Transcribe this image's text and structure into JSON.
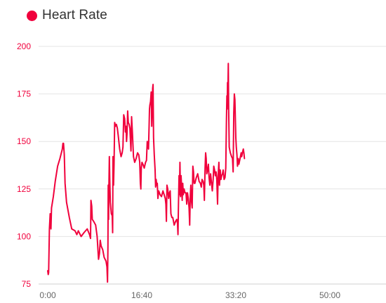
{
  "chart_data": {
    "type": "line",
    "title": "",
    "xlabel": "",
    "ylabel": "",
    "legend_position": "top-left",
    "grid": true,
    "xlim_seconds": [
      0,
      3600
    ],
    "ylim": [
      75,
      200
    ],
    "yticks": [
      75,
      100,
      125,
      150,
      175,
      200
    ],
    "xticks": [
      {
        "seconds": 0,
        "label": "0:00"
      },
      {
        "seconds": 1000,
        "label": "16:40"
      },
      {
        "seconds": 2000,
        "label": "33:20"
      },
      {
        "seconds": 3000,
        "label": "50:00"
      }
    ],
    "series": [
      {
        "name": "Heart Rate",
        "color": "#f0003c",
        "x_unit": "seconds",
        "points": [
          [
            0,
            82
          ],
          [
            5,
            80
          ],
          [
            10,
            81
          ],
          [
            18,
            104
          ],
          [
            26,
            112
          ],
          [
            34,
            104
          ],
          [
            40,
            115
          ],
          [
            60,
            121
          ],
          [
            80,
            129
          ],
          [
            105,
            137
          ],
          [
            130,
            141
          ],
          [
            155,
            146
          ],
          [
            162,
            149
          ],
          [
            168,
            149
          ],
          [
            176,
            143
          ],
          [
            184,
            128
          ],
          [
            200,
            118
          ],
          [
            230,
            110
          ],
          [
            255,
            104
          ],
          [
            290,
            103
          ],
          [
            310,
            101
          ],
          [
            325,
            103
          ],
          [
            355,
            100
          ],
          [
            385,
            102
          ],
          [
            420,
            104
          ],
          [
            445,
            101
          ],
          [
            455,
            99
          ],
          [
            460,
            119
          ],
          [
            468,
            116
          ],
          [
            474,
            109
          ],
          [
            488,
            108
          ],
          [
            510,
            106
          ],
          [
            525,
            100
          ],
          [
            540,
            88
          ],
          [
            550,
            91
          ],
          [
            558,
            98
          ],
          [
            568,
            95
          ],
          [
            585,
            93
          ],
          [
            600,
            89
          ],
          [
            620,
            87
          ],
          [
            630,
            84
          ],
          [
            636,
            76
          ],
          [
            640,
            95
          ],
          [
            643,
            127
          ],
          [
            647,
            109
          ],
          [
            651,
            127
          ],
          [
            655,
            142
          ],
          [
            660,
            130
          ],
          [
            666,
            118
          ],
          [
            676,
            112
          ],
          [
            686,
            111
          ],
          [
            690,
            102
          ],
          [
            694,
            142
          ],
          [
            700,
            127
          ],
          [
            705,
            138
          ],
          [
            712,
            160
          ],
          [
            720,
            158
          ],
          [
            730,
            159
          ],
          [
            740,
            157
          ],
          [
            750,
            153
          ],
          [
            765,
            146
          ],
          [
            780,
            142
          ],
          [
            792,
            144
          ],
          [
            800,
            147
          ],
          [
            808,
            164
          ],
          [
            818,
            162
          ],
          [
            826,
            155
          ],
          [
            832,
            158
          ],
          [
            838,
            150
          ],
          [
            843,
            154
          ],
          [
            850,
            166
          ],
          [
            857,
            160
          ],
          [
            866,
            159
          ],
          [
            874,
            157
          ],
          [
            879,
            151
          ],
          [
            885,
            145
          ],
          [
            892,
            163
          ],
          [
            900,
            155
          ],
          [
            912,
            142
          ],
          [
            925,
            139
          ],
          [
            940,
            141
          ],
          [
            955,
            144
          ],
          [
            968,
            143
          ],
          [
            978,
            139
          ],
          [
            985,
            128
          ],
          [
            990,
            125
          ],
          [
            995,
            136
          ],
          [
            1002,
            139
          ],
          [
            1012,
            138
          ],
          [
            1026,
            136
          ],
          [
            1040,
            139
          ],
          [
            1050,
            140
          ],
          [
            1058,
            150
          ],
          [
            1066,
            148
          ],
          [
            1072,
            146
          ],
          [
            1078,
            159
          ],
          [
            1082,
            167
          ],
          [
            1086,
            169
          ],
          [
            1093,
            171
          ],
          [
            1100,
            176
          ],
          [
            1106,
            158
          ],
          [
            1112,
            170
          ],
          [
            1116,
            178
          ],
          [
            1120,
            180
          ],
          [
            1125,
            152
          ],
          [
            1133,
            143
          ],
          [
            1142,
            135
          ],
          [
            1147,
            126
          ],
          [
            1153,
            130
          ],
          [
            1159,
            127
          ],
          [
            1165,
            128
          ],
          [
            1172,
            120
          ],
          [
            1180,
            124
          ],
          [
            1195,
            122
          ],
          [
            1210,
            121
          ],
          [
            1225,
            124
          ],
          [
            1238,
            122
          ],
          [
            1250,
            120
          ],
          [
            1257,
            117
          ],
          [
            1262,
            108
          ],
          [
            1268,
            127
          ],
          [
            1276,
            125
          ],
          [
            1286,
            120
          ],
          [
            1295,
            123
          ],
          [
            1302,
            124
          ],
          [
            1310,
            112
          ],
          [
            1320,
            110
          ],
          [
            1330,
            110
          ],
          [
            1345,
            106
          ],
          [
            1360,
            108
          ],
          [
            1372,
            109
          ],
          [
            1380,
            107
          ],
          [
            1385,
            101
          ],
          [
            1390,
            117
          ],
          [
            1396,
            132
          ],
          [
            1401,
            122
          ],
          [
            1406,
            139
          ],
          [
            1412,
            121
          ],
          [
            1418,
            132
          ],
          [
            1424,
            126
          ],
          [
            1430,
            119
          ],
          [
            1436,
            128
          ],
          [
            1442,
            122
          ],
          [
            1450,
            125
          ],
          [
            1460,
            123
          ],
          [
            1470,
            123
          ],
          [
            1478,
            117
          ],
          [
            1486,
            123
          ],
          [
            1495,
            120
          ],
          [
            1503,
            115
          ],
          [
            1510,
            106
          ],
          [
            1515,
            120
          ],
          [
            1522,
            127
          ],
          [
            1530,
            118
          ],
          [
            1536,
            115
          ],
          [
            1543,
            137
          ],
          [
            1550,
            134
          ],
          [
            1557,
            128
          ],
          [
            1565,
            128
          ],
          [
            1580,
            131
          ],
          [
            1595,
            133
          ],
          [
            1610,
            129
          ],
          [
            1623,
            128
          ],
          [
            1633,
            126
          ],
          [
            1641,
            130
          ],
          [
            1652,
            129
          ],
          [
            1660,
            127
          ],
          [
            1666,
            119
          ],
          [
            1673,
            136
          ],
          [
            1679,
            144
          ],
          [
            1685,
            141
          ],
          [
            1691,
            133
          ],
          [
            1700,
            135
          ],
          [
            1708,
            138
          ],
          [
            1716,
            131
          ],
          [
            1724,
            127
          ],
          [
            1732,
            133
          ],
          [
            1742,
            128
          ],
          [
            1750,
            124
          ],
          [
            1759,
            130
          ],
          [
            1766,
            137
          ],
          [
            1774,
            135
          ],
          [
            1782,
            132
          ],
          [
            1790,
            134
          ],
          [
            1798,
            130
          ],
          [
            1806,
            117
          ],
          [
            1812,
            132
          ],
          [
            1820,
            139
          ],
          [
            1826,
            127
          ],
          [
            1834,
            135
          ],
          [
            1842,
            130
          ],
          [
            1850,
            132
          ],
          [
            1858,
            133
          ],
          [
            1866,
            135
          ],
          [
            1875,
            130
          ],
          [
            1885,
            131
          ],
          [
            1893,
            136
          ],
          [
            1900,
            160
          ],
          [
            1905,
            174
          ],
          [
            1908,
            167
          ],
          [
            1912,
            181
          ],
          [
            1916,
            175
          ],
          [
            1920,
            191
          ],
          [
            1924,
            168
          ],
          [
            1930,
            147
          ],
          [
            1942,
            144
          ],
          [
            1955,
            142
          ],
          [
            1965,
            141
          ],
          [
            1972,
            134
          ],
          [
            1978,
            165
          ],
          [
            1984,
            175
          ],
          [
            1990,
            172
          ],
          [
            1996,
            160
          ],
          [
            2000,
            152
          ],
          [
            2005,
            147
          ],
          [
            2012,
            143
          ],
          [
            2018,
            137
          ],
          [
            2025,
            141
          ],
          [
            2033,
            138
          ],
          [
            2041,
            140
          ],
          [
            2049,
            142
          ],
          [
            2057,
            144
          ],
          [
            2063,
            142
          ],
          [
            2070,
            144
          ],
          [
            2080,
            146
          ],
          [
            2086,
            144
          ],
          [
            2092,
            141
          ]
        ]
      }
    ]
  }
}
